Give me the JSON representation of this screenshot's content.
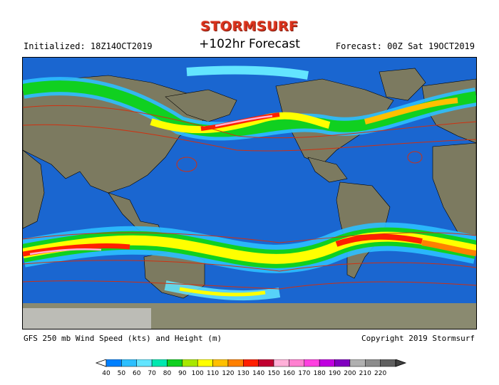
{
  "logo": {
    "text": "STORMSURF"
  },
  "header": {
    "initialized": "Initialized: 18Z14OCT2019",
    "title": "+102hr Forecast",
    "forecast": "Forecast: 00Z Sat 19OCT2019"
  },
  "footer": {
    "product": "GFS 250 mb Wind Speed (kts) and Height (m)",
    "copyright": "Copyright 2019 Stormsurf"
  },
  "legend": {
    "ticks": [
      "40",
      "50",
      "60",
      "70",
      "80",
      "90",
      "100",
      "110",
      "120",
      "130",
      "140",
      "150",
      "160",
      "170",
      "180",
      "190",
      "200",
      "210",
      "220"
    ],
    "colors": [
      "#0080ff",
      "#2cbfff",
      "#63e5ff",
      "#00e8b0",
      "#10d020",
      "#a8e800",
      "#ffff00",
      "#ffc000",
      "#ff8000",
      "#ff2000",
      "#c00030",
      "#ffb0d8",
      "#ff80d0",
      "#ff40e0",
      "#c000e0",
      "#8000c0",
      "#b0b0b0",
      "#8c8c8c",
      "#606060"
    ]
  },
  "colors": {
    "ocean": "#1a66d0",
    "land": "#7c7a60",
    "ice": "#c8c8c8",
    "border": "#000000",
    "contour": "#d03010"
  }
}
